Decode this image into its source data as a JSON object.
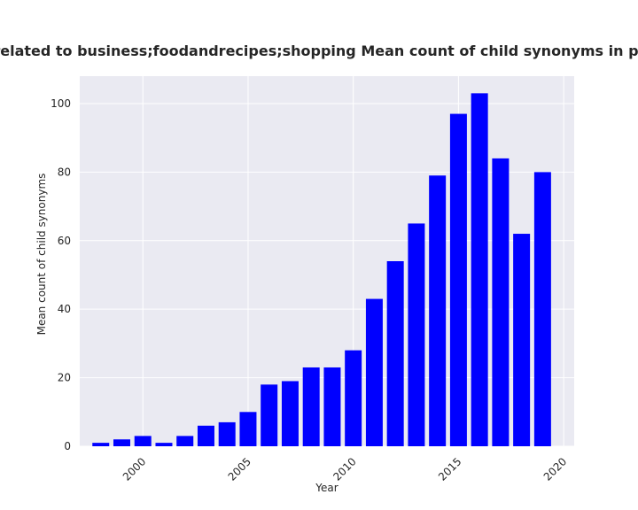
{
  "chart_data": {
    "type": "bar",
    "title": "Policies are related to business;foodandrecipes;shopping Mean count of child synonyms in privacy policies",
    "xlabel": "Year",
    "ylabel": "Mean count of child synonyms",
    "x": [
      1998,
      1999,
      2000,
      2001,
      2002,
      2003,
      2004,
      2005,
      2006,
      2007,
      2008,
      2009,
      2010,
      2011,
      2012,
      2013,
      2014,
      2015,
      2016,
      2017,
      2018,
      2019
    ],
    "values": [
      1,
      2,
      3,
      1,
      3,
      6,
      7,
      10,
      18,
      19,
      23,
      23,
      28,
      43,
      54,
      65,
      79,
      97,
      103,
      84,
      62,
      80
    ],
    "xticks": [
      "2000",
      "2005",
      "2010",
      "2015",
      "2020"
    ],
    "yticks": [
      "0",
      "20",
      "40",
      "60",
      "80",
      "100"
    ],
    "xlim": [
      1997,
      2020.5
    ],
    "ylim": [
      0,
      108
    ],
    "grid": true,
    "colors": {
      "bar": "#0000ff",
      "plot_background": "#eaeaf2",
      "grid": "#ffffff"
    }
  }
}
